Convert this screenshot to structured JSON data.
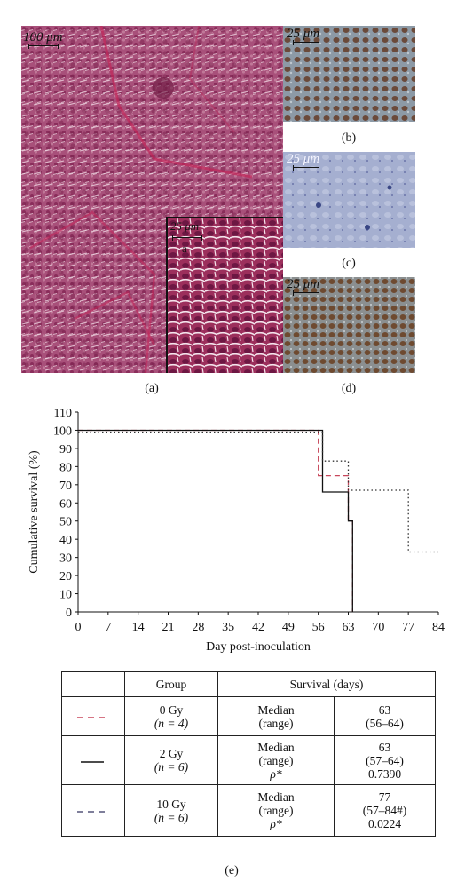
{
  "figure": {
    "panel_labels": {
      "a": "(a)",
      "b": "(b)",
      "c": "(c)",
      "d": "(d)",
      "e": "(e)"
    },
    "scale_bars": {
      "a_main": {
        "value": "100",
        "unit": "μm"
      },
      "a_inset": {
        "value": "25",
        "unit": "μm"
      },
      "b": {
        "value": "25",
        "unit": "μm"
      },
      "c": {
        "value": "25",
        "unit": "μm"
      },
      "d": {
        "value": "25",
        "unit": "μm"
      }
    },
    "inset_letter": "a"
  },
  "chart_data": {
    "type": "line",
    "xlabel": "Day post-inoculation",
    "ylabel": "Cumulative survival (%)",
    "xlim": [
      0,
      84
    ],
    "ylim": [
      0,
      110
    ],
    "xticks": [
      0,
      7,
      14,
      21,
      28,
      35,
      42,
      49,
      56,
      63,
      70,
      77,
      84
    ],
    "yticks": [
      0,
      10,
      20,
      30,
      40,
      50,
      60,
      70,
      80,
      90,
      100,
      110
    ],
    "series": [
      {
        "style": "dashed",
        "color": "#c8475b",
        "steps": [
          [
            0,
            100
          ],
          [
            56,
            100
          ],
          [
            56,
            75
          ],
          [
            63,
            75
          ],
          [
            63,
            50
          ],
          [
            64,
            50
          ],
          [
            64,
            0
          ]
        ]
      },
      {
        "style": "solid",
        "color": "#111111",
        "steps": [
          [
            0,
            100
          ],
          [
            57,
            100
          ],
          [
            57,
            66
          ],
          [
            63,
            66
          ],
          [
            63,
            50
          ],
          [
            64,
            50
          ],
          [
            64,
            0
          ]
        ]
      },
      {
        "style": "dotted",
        "color": "#333333",
        "steps": [
          [
            0,
            99
          ],
          [
            57,
            99
          ],
          [
            57,
            83
          ],
          [
            63,
            83
          ],
          [
            63,
            67
          ],
          [
            77,
            67
          ],
          [
            77,
            33
          ],
          [
            84,
            33
          ]
        ]
      }
    ]
  },
  "table": {
    "headers": {
      "group": "Group",
      "survival": "Survival (days)"
    },
    "rows": [
      {
        "line_color": "#c8475b",
        "line_style": "dashed",
        "group": "0 Gy",
        "n": "(n = 4)",
        "labels": [
          "Median",
          "(range)"
        ],
        "values": [
          "63",
          "(56–64)"
        ]
      },
      {
        "line_color": "#111111",
        "line_style": "solid",
        "group": "2 Gy",
        "n": "(n = 6)",
        "labels": [
          "Median",
          "(range)",
          "ρ*"
        ],
        "values": [
          "63",
          "(57–64)",
          "0.7390"
        ]
      },
      {
        "line_color": "#55557a",
        "line_style": "dashed",
        "group": "10 Gy",
        "n": "(n = 6)",
        "labels": [
          "Median",
          "(range)",
          "ρ*"
        ],
        "values": [
          "77",
          "(57–84#)",
          "0.0224"
        ]
      }
    ]
  }
}
